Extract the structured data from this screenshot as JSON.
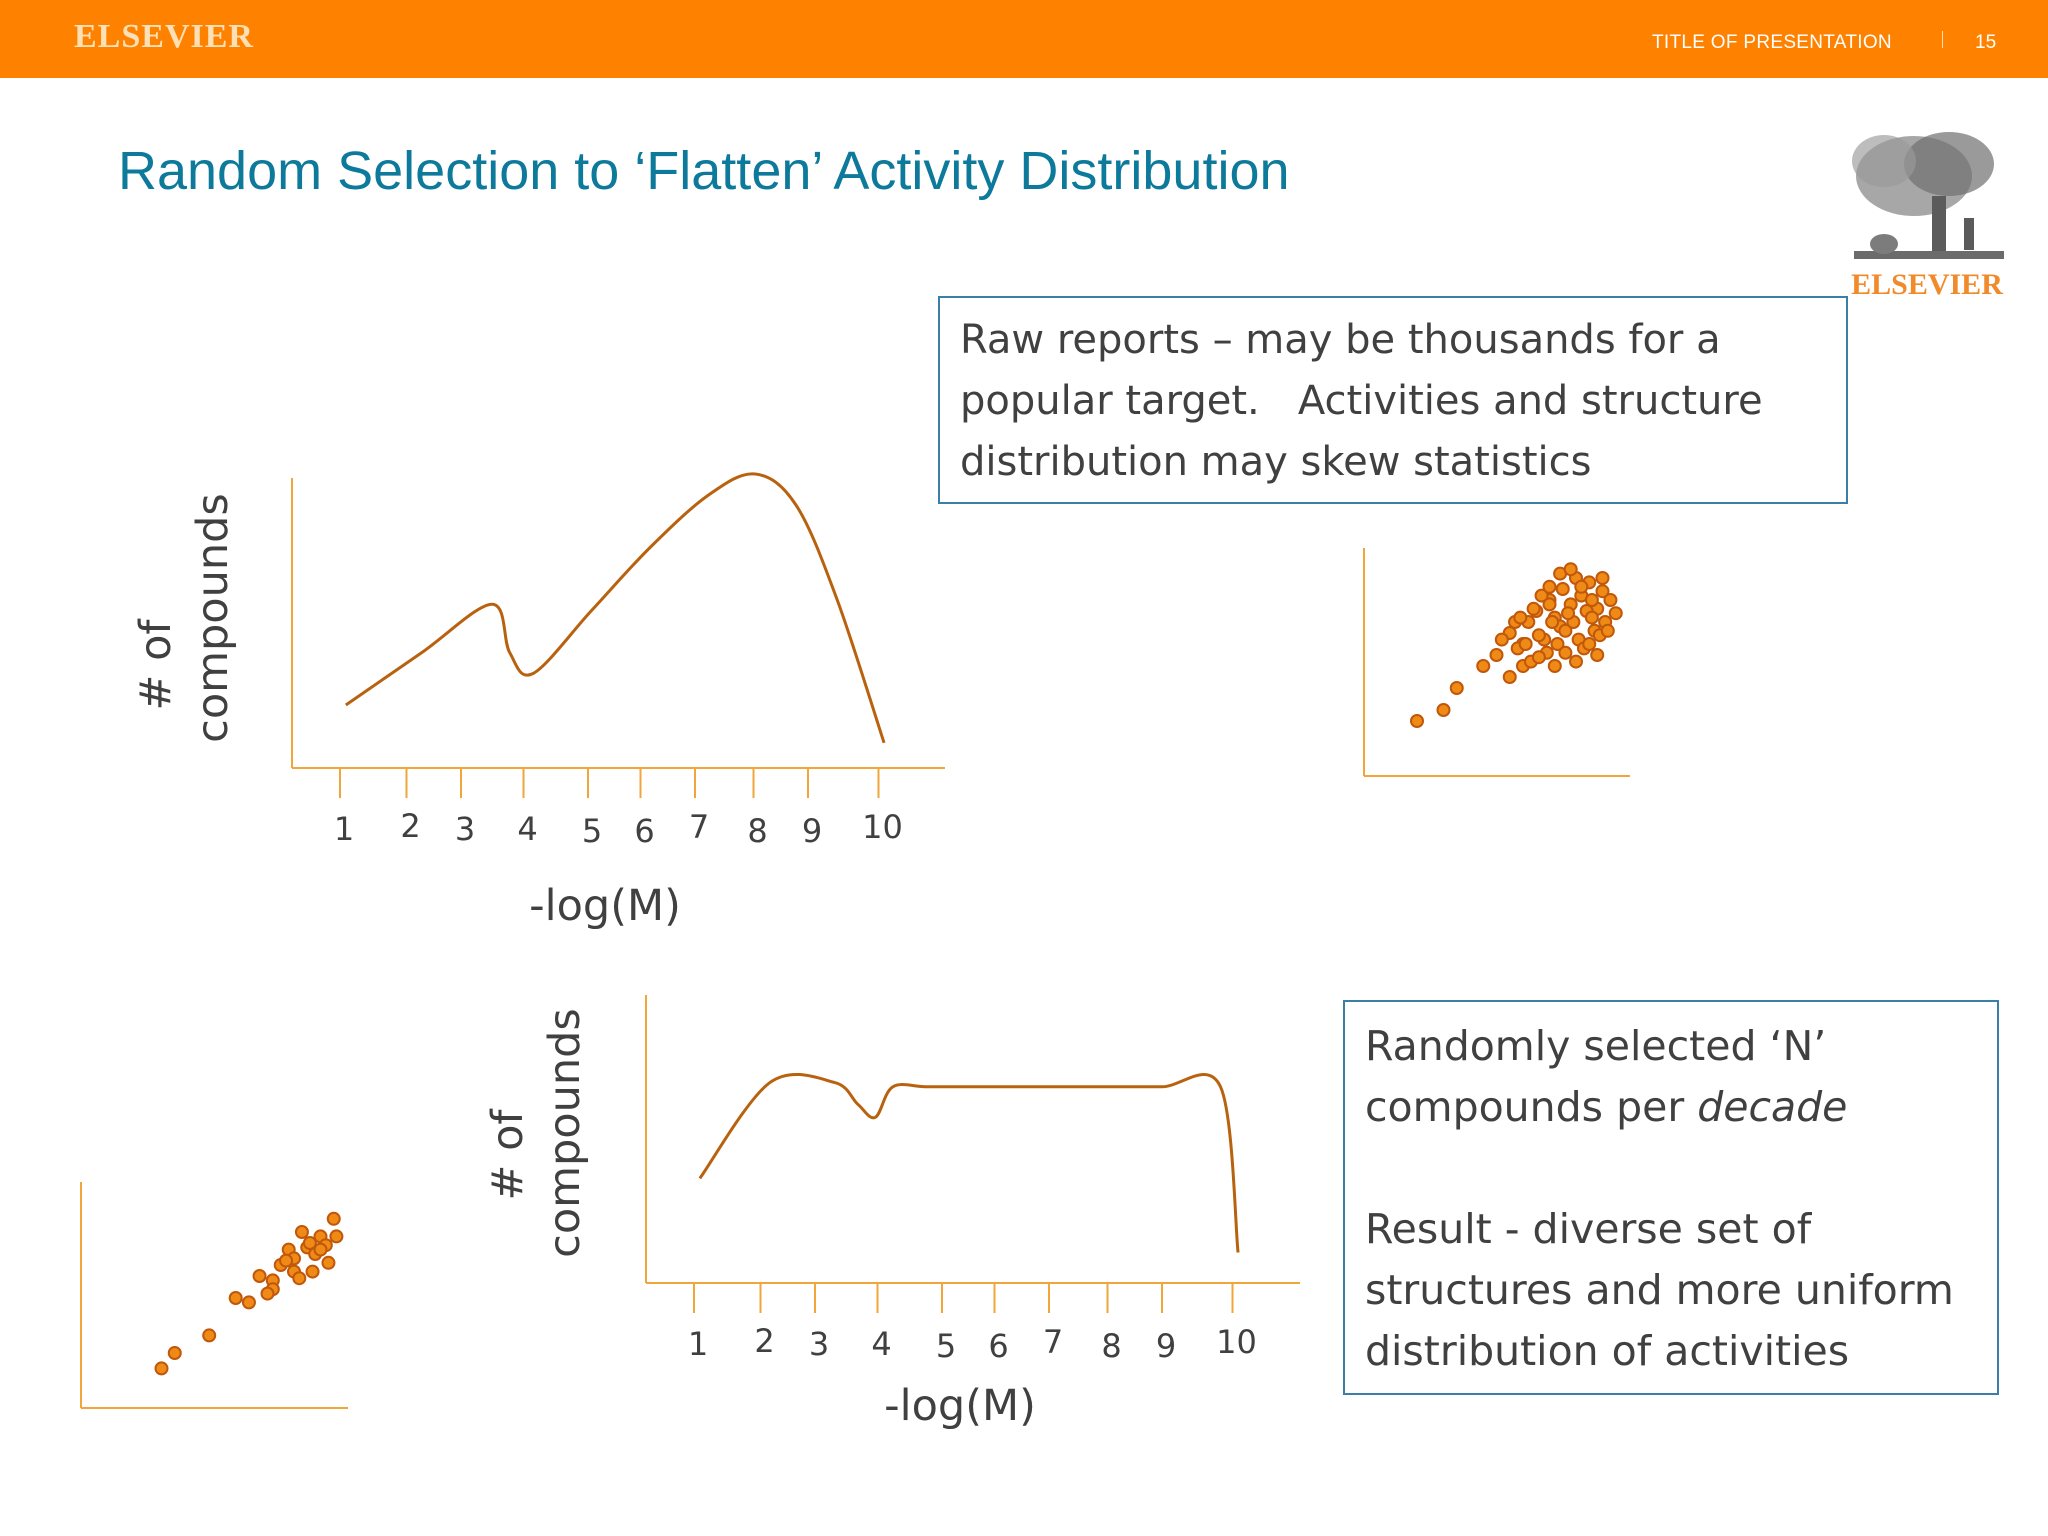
{
  "header": {
    "brand": "ELSEVIER",
    "presentation_title": "TITLE OF PRESENTATION",
    "page_number": "15"
  },
  "slide": {
    "title": "Random Selection to ‘Flatten’ Activity Distribution"
  },
  "logo": {
    "text": "ELSEVIER"
  },
  "callouts": {
    "raw": {
      "line1": "Raw reports – may be thousands for a",
      "line2": "popular target.   Activities and structure",
      "line3": "distribution may skew statistics"
    },
    "selected": {
      "line1": "Randomly selected ‘N’",
      "line2_prefix": "compounds per ",
      "line2_emphasis": "decade",
      "line3": "Result - diverse set of",
      "line4": "structures and more uniform",
      "line5": "distribution of activities"
    }
  },
  "chart_data": [
    {
      "type": "line",
      "ylabel_line1": "# of",
      "ylabel_line2": "compounds",
      "xlabel": "-log(M)",
      "x_ticks": [
        "1",
        "2",
        "3",
        "4",
        "5",
        "6",
        "7",
        "8",
        "9",
        "10"
      ],
      "x": [
        1.1,
        2.4,
        3.6,
        3.9,
        4.3,
        5.3,
        6.3,
        7.3,
        8.1,
        8.8,
        9.5,
        10.3
      ],
      "y": [
        0.3,
        0.55,
        0.78,
        0.55,
        0.45,
        0.75,
        1.05,
        1.3,
        1.4,
        1.25,
        0.8,
        0.12
      ]
    },
    {
      "type": "line",
      "ylabel_line1": "# of",
      "ylabel_line2": "compounds",
      "xlabel": "-log(M)",
      "x_ticks": [
        "1",
        "2",
        "3",
        "4",
        "5",
        "6",
        "7",
        "8",
        "9",
        "10"
      ],
      "x": [
        1.1,
        2.3,
        3.4,
        3.8,
        4.1,
        4.4,
        5.0,
        6.0,
        7.0,
        8.0,
        9.0,
        10.0,
        10.3
      ],
      "y": [
        0.48,
        0.92,
        0.92,
        0.82,
        0.76,
        0.9,
        0.9,
        0.9,
        0.9,
        0.9,
        0.9,
        0.9,
        0.14
      ]
    },
    {
      "type": "scatter",
      "x": [
        0.2,
        0.3,
        0.35,
        0.45,
        0.5,
        0.55,
        0.6,
        0.62,
        0.65,
        0.7,
        0.72,
        0.75,
        0.78,
        0.8,
        0.82,
        0.85,
        0.88,
        0.9,
        0.55,
        0.6,
        0.68,
        0.74,
        0.79,
        0.84,
        0.87,
        0.93,
        0.58,
        0.66,
        0.71,
        0.77,
        0.81,
        0.86,
        0.91,
        0.63,
        0.69,
        0.73,
        0.76,
        0.83,
        0.89,
        0.95,
        0.52,
        0.57,
        0.64,
        0.67,
        0.7,
        0.74,
        0.78,
        0.82,
        0.86,
        0.9,
        0.61,
        0.66,
        0.72,
        0.76,
        0.8,
        0.85,
        0.88,
        0.92,
        0.59,
        0.7
      ],
      "y": [
        0.25,
        0.3,
        0.4,
        0.5,
        0.55,
        0.65,
        0.6,
        0.7,
        0.75,
        0.8,
        0.72,
        0.85,
        0.78,
        0.9,
        0.82,
        0.88,
        0.76,
        0.84,
        0.45,
        0.5,
        0.62,
        0.68,
        0.7,
        0.75,
        0.66,
        0.8,
        0.58,
        0.64,
        0.7,
        0.74,
        0.62,
        0.72,
        0.7,
        0.52,
        0.56,
        0.6,
        0.66,
        0.58,
        0.64,
        0.74,
        0.62,
        0.7,
        0.76,
        0.82,
        0.86,
        0.92,
        0.94,
        0.86,
        0.8,
        0.9,
        0.6,
        0.54,
        0.5,
        0.56,
        0.52,
        0.6,
        0.55,
        0.66,
        0.72,
        0.78
      ]
    },
    {
      "type": "scatter",
      "x": [
        0.3,
        0.35,
        0.48,
        0.58,
        0.63,
        0.67,
        0.72,
        0.75,
        0.78,
        0.8,
        0.83,
        0.85,
        0.87,
        0.9,
        0.92,
        0.95,
        0.72,
        0.8,
        0.88,
        0.93,
        0.77,
        0.82,
        0.86,
        0.9,
        0.96,
        0.7
      ],
      "y": [
        0.18,
        0.25,
        0.33,
        0.5,
        0.48,
        0.6,
        0.58,
        0.65,
        0.72,
        0.68,
        0.8,
        0.73,
        0.62,
        0.78,
        0.74,
        0.86,
        0.54,
        0.62,
        0.7,
        0.66,
        0.67,
        0.59,
        0.75,
        0.72,
        0.78,
        0.52
      ]
    }
  ]
}
